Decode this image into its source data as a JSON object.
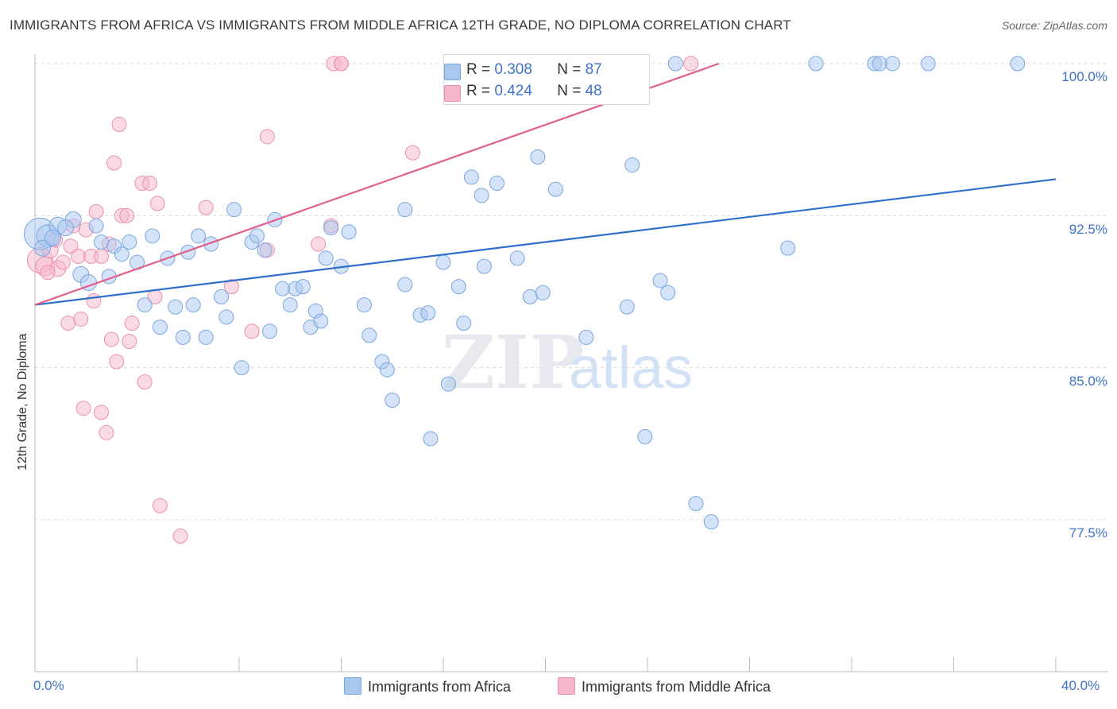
{
  "header": {
    "title": "IMMIGRANTS FROM AFRICA VS IMMIGRANTS FROM MIDDLE AFRICA 12TH GRADE, NO DIPLOMA CORRELATION CHART",
    "source": "Source: ZipAtlas.com"
  },
  "legend": {
    "r_label": "R = ",
    "n_label": "N = ",
    "rows": [
      {
        "r": "0.308",
        "n": "87"
      },
      {
        "r": "0.424",
        "n": "48"
      }
    ]
  },
  "bottom_legend": [
    "Immigrants from Africa",
    "Immigrants from Middle Africa"
  ],
  "colors": {
    "blue_fill": "#a9c8ef",
    "blue_stroke": "#7aa6e0",
    "blue_line": "#2f6fcc",
    "pink_fill": "#f5b8cb",
    "pink_stroke": "#ec8fae",
    "pink_line": "#e0608e",
    "tick_text": "#3f73c6"
  },
  "chart_data": {
    "type": "scatter",
    "title": "IMMIGRANTS FROM AFRICA VS IMMIGRANTS FROM MIDDLE AFRICA 12TH GRADE, NO DIPLOMA CORRELATION CHART",
    "xlabel": "",
    "ylabel": "12th Grade, No Diploma",
    "xlim": [
      0,
      40
    ],
    "ylim": [
      71,
      101
    ],
    "x_tick_labels": [
      "0.0%",
      "40.0%"
    ],
    "y_ticks": [
      77.5,
      85.0,
      92.5,
      100.0
    ],
    "y_tick_labels": [
      "77.5%",
      "85.0%",
      "92.5%",
      "100.0%"
    ],
    "grid": "horizontal dashed",
    "legend_position": "top-center",
    "watermark": "ZIPatlas",
    "series": [
      {
        "name": "Immigrants from Africa",
        "r": 0.308,
        "n": 87,
        "trend": {
          "x": [
            0,
            40
          ],
          "y": [
            88.1,
            94.3
          ]
        },
        "points": [
          {
            "x": 0.2,
            "y": 91.6,
            "s": 20
          },
          {
            "x": 0.5,
            "y": 91.5,
            "s": 14
          },
          {
            "x": 0.9,
            "y": 92.0,
            "s": 11
          },
          {
            "x": 1.5,
            "y": 92.3,
            "s": 10
          },
          {
            "x": 1.8,
            "y": 89.6,
            "s": 10
          },
          {
            "x": 2.1,
            "y": 89.2,
            "s": 10
          },
          {
            "x": 2.4,
            "y": 92.0,
            "s": 9
          },
          {
            "x": 2.6,
            "y": 91.2,
            "s": 9
          },
          {
            "x": 2.9,
            "y": 89.5,
            "s": 9
          },
          {
            "x": 3.1,
            "y": 91.0,
            "s": 9
          },
          {
            "x": 3.4,
            "y": 90.6,
            "s": 9
          },
          {
            "x": 3.7,
            "y": 91.2,
            "s": 9
          },
          {
            "x": 4.0,
            "y": 90.2,
            "s": 9
          },
          {
            "x": 4.3,
            "y": 88.1,
            "s": 9
          },
          {
            "x": 4.6,
            "y": 91.5,
            "s": 9
          },
          {
            "x": 4.9,
            "y": 87.0,
            "s": 9
          },
          {
            "x": 5.2,
            "y": 90.4,
            "s": 9
          },
          {
            "x": 5.5,
            "y": 88.0,
            "s": 9
          },
          {
            "x": 5.8,
            "y": 86.5,
            "s": 9
          },
          {
            "x": 6.0,
            "y": 90.7,
            "s": 9
          },
          {
            "x": 6.2,
            "y": 88.1,
            "s": 9
          },
          {
            "x": 6.4,
            "y": 91.5,
            "s": 9
          },
          {
            "x": 6.7,
            "y": 86.5,
            "s": 9
          },
          {
            "x": 6.9,
            "y": 91.1,
            "s": 9
          },
          {
            "x": 7.3,
            "y": 88.5,
            "s": 9
          },
          {
            "x": 7.5,
            "y": 87.5,
            "s": 9
          },
          {
            "x": 7.8,
            "y": 92.8,
            "s": 9
          },
          {
            "x": 8.1,
            "y": 85.0,
            "s": 9
          },
          {
            "x": 8.5,
            "y": 91.2,
            "s": 9
          },
          {
            "x": 8.7,
            "y": 91.5,
            "s": 9
          },
          {
            "x": 9.0,
            "y": 90.8,
            "s": 9
          },
          {
            "x": 9.2,
            "y": 86.8,
            "s": 9
          },
          {
            "x": 9.4,
            "y": 92.3,
            "s": 9
          },
          {
            "x": 9.7,
            "y": 88.9,
            "s": 9
          },
          {
            "x": 10.0,
            "y": 88.1,
            "s": 9
          },
          {
            "x": 10.2,
            "y": 88.9,
            "s": 9
          },
          {
            "x": 10.5,
            "y": 89.0,
            "s": 9
          },
          {
            "x": 10.8,
            "y": 87.0,
            "s": 9
          },
          {
            "x": 11.0,
            "y": 87.8,
            "s": 9
          },
          {
            "x": 11.2,
            "y": 87.3,
            "s": 9
          },
          {
            "x": 11.4,
            "y": 90.4,
            "s": 9
          },
          {
            "x": 11.6,
            "y": 91.9,
            "s": 9
          },
          {
            "x": 12.0,
            "y": 90.0,
            "s": 9
          },
          {
            "x": 12.3,
            "y": 91.7,
            "s": 9
          },
          {
            "x": 12.9,
            "y": 88.1,
            "s": 9
          },
          {
            "x": 13.1,
            "y": 86.6,
            "s": 9
          },
          {
            "x": 13.6,
            "y": 85.3,
            "s": 9
          },
          {
            "x": 13.8,
            "y": 84.9,
            "s": 9
          },
          {
            "x": 14.0,
            "y": 83.4,
            "s": 9
          },
          {
            "x": 14.5,
            "y": 92.8,
            "s": 9
          },
          {
            "x": 14.5,
            "y": 89.1,
            "s": 9
          },
          {
            "x": 15.1,
            "y": 87.6,
            "s": 9
          },
          {
            "x": 15.4,
            "y": 87.7,
            "s": 9
          },
          {
            "x": 15.5,
            "y": 81.5,
            "s": 9
          },
          {
            "x": 16.0,
            "y": 90.2,
            "s": 9
          },
          {
            "x": 16.2,
            "y": 84.2,
            "s": 9
          },
          {
            "x": 16.6,
            "y": 89.0,
            "s": 9
          },
          {
            "x": 16.8,
            "y": 87.2,
            "s": 9
          },
          {
            "x": 17.1,
            "y": 94.4,
            "s": 9
          },
          {
            "x": 17.5,
            "y": 93.5,
            "s": 9
          },
          {
            "x": 17.6,
            "y": 90.0,
            "s": 9
          },
          {
            "x": 18.1,
            "y": 94.1,
            "s": 9
          },
          {
            "x": 18.9,
            "y": 90.4,
            "s": 9
          },
          {
            "x": 19.4,
            "y": 88.5,
            "s": 9
          },
          {
            "x": 19.7,
            "y": 95.4,
            "s": 9
          },
          {
            "x": 19.9,
            "y": 88.7,
            "s": 9
          },
          {
            "x": 20.4,
            "y": 93.8,
            "s": 9
          },
          {
            "x": 21.2,
            "y": 100.0,
            "s": 9
          },
          {
            "x": 21.6,
            "y": 86.5,
            "s": 9
          },
          {
            "x": 23.2,
            "y": 88.0,
            "s": 9
          },
          {
            "x": 23.4,
            "y": 95.0,
            "s": 9
          },
          {
            "x": 23.9,
            "y": 81.6,
            "s": 9
          },
          {
            "x": 24.5,
            "y": 89.3,
            "s": 9
          },
          {
            "x": 24.8,
            "y": 88.7,
            "s": 9
          },
          {
            "x": 25.1,
            "y": 100.0,
            "s": 9
          },
          {
            "x": 25.9,
            "y": 78.3,
            "s": 9
          },
          {
            "x": 26.5,
            "y": 77.4,
            "s": 9
          },
          {
            "x": 29.5,
            "y": 90.9,
            "s": 9
          },
          {
            "x": 30.6,
            "y": 100.0,
            "s": 9
          },
          {
            "x": 32.9,
            "y": 100.0,
            "s": 9
          },
          {
            "x": 33.1,
            "y": 100.0,
            "s": 9
          },
          {
            "x": 33.6,
            "y": 100.0,
            "s": 9
          },
          {
            "x": 35.0,
            "y": 100.0,
            "s": 9
          },
          {
            "x": 38.5,
            "y": 100.0,
            "s": 9
          },
          {
            "x": 0.3,
            "y": 90.9,
            "s": 10
          },
          {
            "x": 1.2,
            "y": 91.9,
            "s": 10
          },
          {
            "x": 0.7,
            "y": 91.4,
            "s": 10
          }
        ]
      },
      {
        "name": "Immigrants from Middle Africa",
        "r": 0.424,
        "n": 48,
        "trend": {
          "x": [
            0,
            26.8
          ],
          "y": [
            88.1,
            100.0
          ]
        },
        "points": [
          {
            "x": 0.2,
            "y": 90.3,
            "s": 16
          },
          {
            "x": 0.4,
            "y": 90.0,
            "s": 12
          },
          {
            "x": 0.6,
            "y": 90.8,
            "s": 10
          },
          {
            "x": 0.9,
            "y": 89.9,
            "s": 10
          },
          {
            "x": 1.1,
            "y": 90.2,
            "s": 9
          },
          {
            "x": 1.3,
            "y": 87.2,
            "s": 9
          },
          {
            "x": 1.4,
            "y": 91.0,
            "s": 9
          },
          {
            "x": 1.5,
            "y": 92.0,
            "s": 9
          },
          {
            "x": 1.7,
            "y": 90.5,
            "s": 9
          },
          {
            "x": 1.8,
            "y": 87.4,
            "s": 9
          },
          {
            "x": 1.9,
            "y": 83.0,
            "s": 9
          },
          {
            "x": 2.2,
            "y": 90.5,
            "s": 9
          },
          {
            "x": 2.3,
            "y": 88.3,
            "s": 9
          },
          {
            "x": 2.4,
            "y": 92.7,
            "s": 9
          },
          {
            "x": 2.6,
            "y": 90.5,
            "s": 9
          },
          {
            "x": 2.6,
            "y": 82.8,
            "s": 9
          },
          {
            "x": 2.8,
            "y": 81.8,
            "s": 9
          },
          {
            "x": 2.9,
            "y": 91.1,
            "s": 9
          },
          {
            "x": 3.0,
            "y": 86.4,
            "s": 9
          },
          {
            "x": 3.1,
            "y": 95.1,
            "s": 9
          },
          {
            "x": 3.2,
            "y": 85.3,
            "s": 9
          },
          {
            "x": 3.3,
            "y": 97.0,
            "s": 9
          },
          {
            "x": 3.4,
            "y": 92.5,
            "s": 9
          },
          {
            "x": 3.6,
            "y": 92.5,
            "s": 9
          },
          {
            "x": 3.7,
            "y": 86.3,
            "s": 9
          },
          {
            "x": 3.8,
            "y": 87.2,
            "s": 9
          },
          {
            "x": 4.2,
            "y": 94.1,
            "s": 9
          },
          {
            "x": 4.3,
            "y": 84.3,
            "s": 9
          },
          {
            "x": 4.5,
            "y": 94.1,
            "s": 9
          },
          {
            "x": 4.7,
            "y": 88.5,
            "s": 9
          },
          {
            "x": 4.8,
            "y": 93.1,
            "s": 9
          },
          {
            "x": 4.9,
            "y": 78.2,
            "s": 9
          },
          {
            "x": 5.7,
            "y": 76.7,
            "s": 9
          },
          {
            "x": 6.7,
            "y": 92.9,
            "s": 9
          },
          {
            "x": 7.7,
            "y": 89.0,
            "s": 9
          },
          {
            "x": 8.5,
            "y": 86.8,
            "s": 9
          },
          {
            "x": 9.1,
            "y": 96.4,
            "s": 9
          },
          {
            "x": 9.1,
            "y": 90.8,
            "s": 9
          },
          {
            "x": 11.1,
            "y": 91.1,
            "s": 9
          },
          {
            "x": 11.6,
            "y": 92.0,
            "s": 9
          },
          {
            "x": 11.7,
            "y": 100.0,
            "s": 9
          },
          {
            "x": 12.0,
            "y": 100.0,
            "s": 9
          },
          {
            "x": 12.0,
            "y": 100.0,
            "s": 9
          },
          {
            "x": 14.8,
            "y": 95.6,
            "s": 9
          },
          {
            "x": 25.7,
            "y": 100.0,
            "s": 9
          },
          {
            "x": 0.8,
            "y": 91.3,
            "s": 9
          },
          {
            "x": 2.0,
            "y": 91.8,
            "s": 9
          },
          {
            "x": 0.5,
            "y": 89.7,
            "s": 9
          }
        ]
      }
    ]
  }
}
